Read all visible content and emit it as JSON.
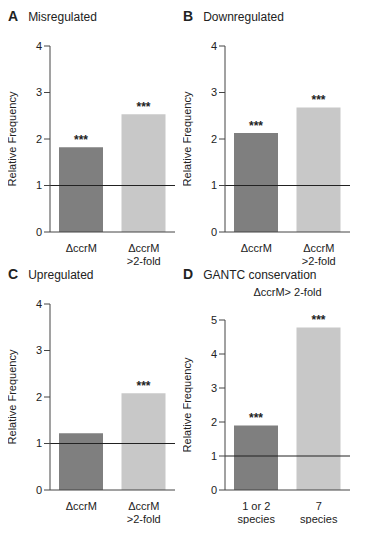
{
  "chart_data": [
    {
      "panel": "A",
      "title": "Misregulated",
      "type": "bar",
      "categories": [
        "ΔccrM",
        "ΔccrM >2-fold"
      ],
      "values": [
        1.82,
        2.53
      ],
      "colors": [
        "#7f7f7f",
        "#c8c8c8"
      ],
      "ylim": [
        0,
        4
      ],
      "yticks": [
        0,
        1,
        2,
        3,
        4
      ],
      "y_label": "Relative Frequency",
      "significance": [
        "***",
        "***"
      ],
      "reference_line": 1
    },
    {
      "panel": "B",
      "title": "Downregulated",
      "type": "bar",
      "categories": [
        "ΔccrM",
        "ΔccrM >2-fold"
      ],
      "values": [
        2.13,
        2.68
      ],
      "colors": [
        "#7f7f7f",
        "#c8c8c8"
      ],
      "ylim": [
        0,
        4
      ],
      "yticks": [
        0,
        1,
        2,
        3,
        4
      ],
      "y_label": "Relative Frequency",
      "significance": [
        "***",
        "***"
      ],
      "reference_line": 1
    },
    {
      "panel": "C",
      "title": "Upregulated",
      "type": "bar",
      "categories": [
        "ΔccrM",
        "ΔccrM >2-fold"
      ],
      "values": [
        1.22,
        2.08
      ],
      "colors": [
        "#7f7f7f",
        "#c8c8c8"
      ],
      "ylim": [
        0,
        4
      ],
      "yticks": [
        0,
        1,
        2,
        3,
        4
      ],
      "y_label": "Relative Frequency",
      "significance": [
        null,
        "***"
      ],
      "reference_line": 1
    },
    {
      "panel": "D",
      "title": "GANTC conservation",
      "subtitle": "ΔccrM> 2-fold",
      "type": "bar",
      "categories": [
        "1 or 2 species",
        "7 species"
      ],
      "values": [
        1.9,
        4.78
      ],
      "colors": [
        "#7f7f7f",
        "#c8c8c8"
      ],
      "ylim": [
        0,
        5
      ],
      "yticks": [
        0,
        1,
        2,
        3,
        4,
        5
      ],
      "y_label": "Relative Frequency",
      "significance": [
        "***",
        "***"
      ],
      "reference_line": 1
    }
  ]
}
